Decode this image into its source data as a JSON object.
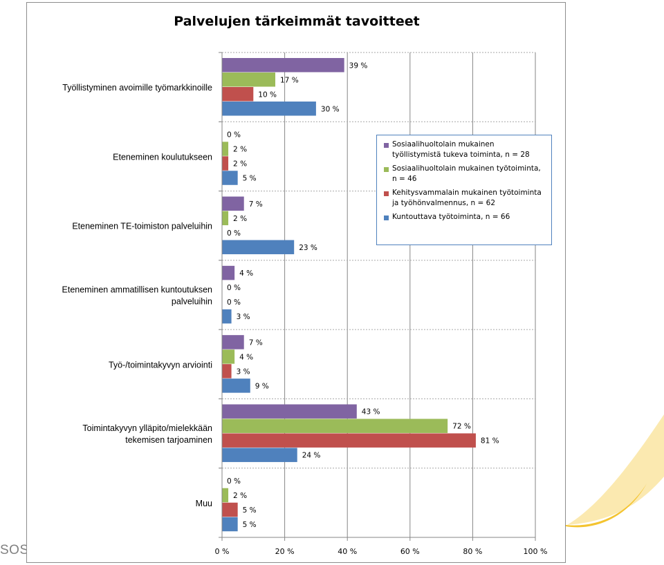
{
  "footer": {
    "text": "SOSI."
  },
  "chart_data": {
    "type": "bar",
    "orientation": "horizontal",
    "title": "Palvelujen tärkeimmät tavoitteet",
    "categories": [
      [
        "Työllistyminen avoimille työmarkkinoille"
      ],
      [
        "Eteneminen koulutukseen"
      ],
      [
        "Eteneminen TE-toimiston palveluihin"
      ],
      [
        "Eteneminen ammatillisen kuntoutuksen",
        "palveluihin"
      ],
      [
        "Työ-/toimintakyvyn arviointi"
      ],
      [
        "Toimintakyvyn ylläpito/mielekkään",
        "tekemisen tarjoaminen"
      ],
      [
        "Muu"
      ]
    ],
    "series": [
      {
        "name": "Sosiaalihuoltolain mukainen työllistymistä tukeva toiminta, n = 28",
        "legend_lines": [
          "Sosiaalihuoltolain mukainen",
          "työllistymistä tukeva toiminta,  n = 28"
        ],
        "color": "#8064a2",
        "values": [
          39,
          0,
          7,
          4,
          7,
          43,
          0
        ]
      },
      {
        "name": "Sosiaalihuoltolain mukainen työtoiminta, n = 46",
        "legend_lines": [
          "Sosiaalihuoltolain mukainen työtoiminta,",
          "n = 46"
        ],
        "color": "#9bbb59",
        "values": [
          17,
          2,
          2,
          0,
          4,
          72,
          2
        ]
      },
      {
        "name": "Kehitysvammalain mukainen työtoiminta ja työhönvalmennus, n = 62",
        "legend_lines": [
          "Kehitysvammalain mukainen työtoiminta",
          "ja työhönvalmennus,  n = 62"
        ],
        "color": "#c0504d",
        "values": [
          10,
          2,
          0,
          0,
          3,
          81,
          5
        ]
      },
      {
        "name": "Kuntouttava työtoiminta, n = 66",
        "legend_lines": [
          "Kuntouttava työtoiminta,  n = 66"
        ],
        "color": "#4f81bd",
        "values": [
          30,
          5,
          23,
          3,
          9,
          24,
          5
        ]
      }
    ],
    "value_suffix": " %",
    "xlim": [
      0,
      100
    ],
    "xticks": [
      0,
      20,
      40,
      60,
      80,
      100
    ],
    "xtick_labels": [
      "0 %",
      "20 %",
      "40 %",
      "60 %",
      "80 %",
      "100 %"
    ],
    "grid": "vertical major gridlines",
    "legend_position": "right"
  }
}
